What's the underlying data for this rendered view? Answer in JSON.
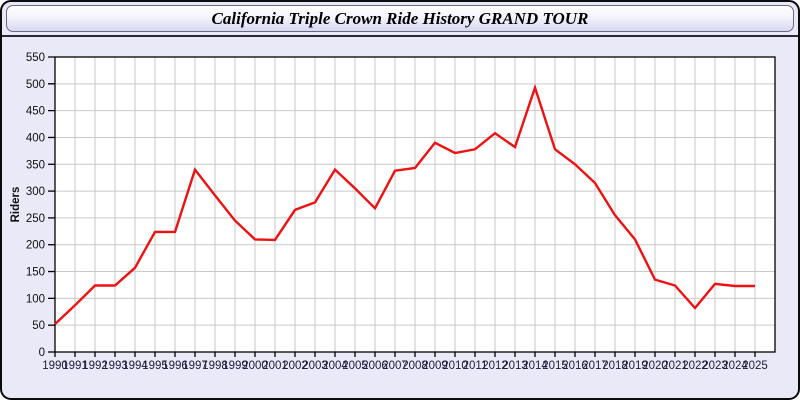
{
  "window": {
    "title": "California Triple Crown Ride History GRAND TOUR"
  },
  "chart_data": {
    "type": "line",
    "title": "California Triple Crown Ride History GRAND TOUR",
    "xlabel": "",
    "ylabel": "Riders",
    "x": [
      1990,
      1991,
      1992,
      1993,
      1994,
      1995,
      1996,
      1997,
      1998,
      1999,
      2000,
      2001,
      2002,
      2003,
      2004,
      2005,
      2006,
      2007,
      2008,
      2009,
      2010,
      2011,
      2012,
      2013,
      2014,
      2015,
      2016,
      2017,
      2018,
      2019,
      2020,
      2021,
      2022,
      2023,
      2024,
      2025
    ],
    "series": [
      {
        "name": "Riders",
        "values": [
          52,
          87,
          124,
          124,
          157,
          224,
          224,
          340,
          292,
          245,
          210,
          209,
          265,
          279,
          340,
          305,
          268,
          338,
          343,
          390,
          371,
          378,
          408,
          382,
          493,
          378,
          350,
          315,
          255,
          210,
          135,
          124,
          82,
          127,
          123,
          123
        ]
      }
    ],
    "ylim": [
      0,
      550
    ],
    "ytick_step": 50,
    "grid": true,
    "legend": false
  },
  "colors": {
    "page_background": "#e9e9f8",
    "plot_background": "#ffffff",
    "grid": "#c9c9c9",
    "axis_frame": "#000000",
    "line": "#ee1111",
    "ytick_label": "#111111",
    "xtick_label": "#1c1c38"
  }
}
